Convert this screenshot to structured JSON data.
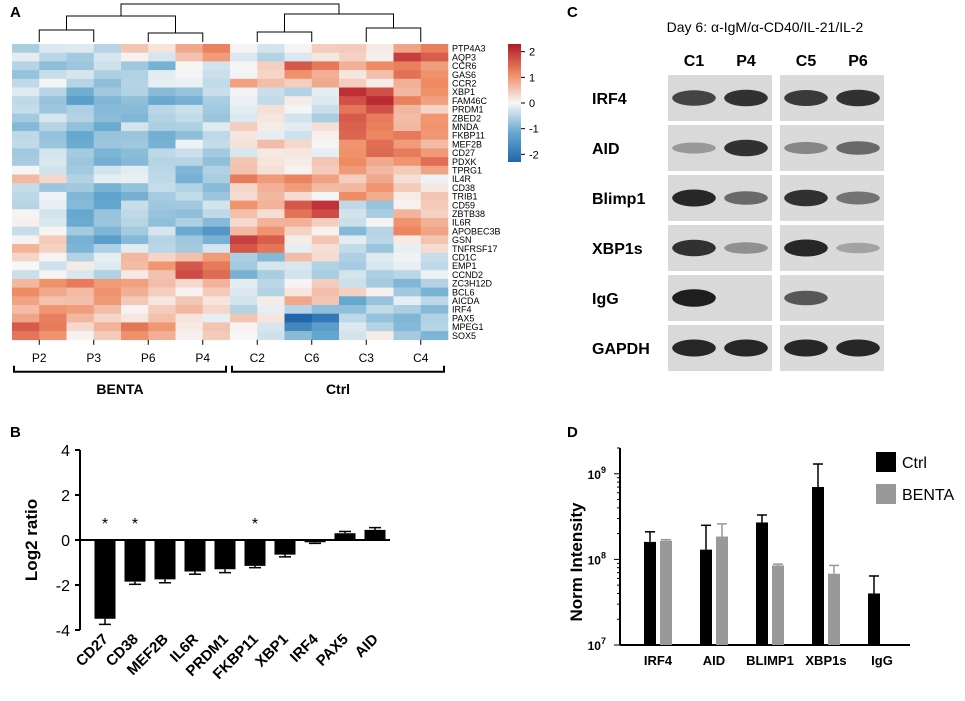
{
  "panels": {
    "a": "A",
    "b": "B",
    "c": "C",
    "d": "D"
  },
  "chart_data": [
    {
      "type": "heatmap",
      "panel": "A",
      "columns": [
        "P2",
        "P3",
        "P6",
        "P4",
        "C2",
        "C6",
        "C3",
        "C4"
      ],
      "groups": [
        {
          "name": "BENTA",
          "columns": [
            "P2",
            "P3",
            "P6",
            "P4"
          ]
        },
        {
          "name": "Ctrl",
          "columns": [
            "C2",
            "C6",
            "C3",
            "C4"
          ]
        }
      ],
      "rows": [
        "PTP4A3",
        "AQP3",
        "CCR6",
        "GAS6",
        "CCR2",
        "XBP1",
        "FAM46C",
        "PRDM1",
        "ZBED2",
        "MNDA",
        "FKBP11",
        "MEF2B",
        "CD27",
        "PDXK",
        "TPRG1",
        "IL4R",
        "CD38",
        "TRIB1",
        "CD59",
        "ZBTB38",
        "IL6R",
        "APOBEC3B",
        "GSN",
        "TNFRSF17",
        "CD1C",
        "EMP1",
        "CCND2",
        "ZC3H12D",
        "BCL6",
        "AICDA",
        "IRF4",
        "PAX5",
        "MPEG1",
        "SOX5"
      ],
      "values": [
        [
          -0.3,
          -0.2,
          0.2,
          0.9,
          -0.2,
          0.2,
          0.3,
          1.1
        ],
        [
          -0.4,
          -0.5,
          -0.1,
          0.8,
          -0.3,
          0.1,
          0.4,
          1.6
        ],
        [
          -0.6,
          -0.4,
          -0.7,
          -0.3,
          0.1,
          1.4,
          0.9,
          1.1
        ],
        [
          -0.7,
          -0.5,
          -0.4,
          -0.2,
          0.2,
          1.0,
          0.5,
          1.4
        ],
        [
          -0.2,
          -0.6,
          -0.2,
          -0.1,
          0.6,
          0.5,
          0.2,
          0.9
        ],
        [
          -0.5,
          -1.0,
          -0.8,
          -0.6,
          -0.2,
          -0.3,
          2.0,
          1.0
        ],
        [
          -0.6,
          -1.1,
          -0.9,
          -0.7,
          -0.1,
          -0.2,
          1.8,
          1.0
        ],
        [
          -0.4,
          -0.9,
          -0.8,
          -0.6,
          0.0,
          -0.2,
          1.6,
          0.6
        ],
        [
          -0.5,
          -0.7,
          -0.7,
          -0.5,
          0.1,
          -0.3,
          1.3,
          0.7
        ],
        [
          -0.6,
          -0.8,
          -0.6,
          -0.5,
          0.2,
          0.0,
          1.4,
          0.9
        ],
        [
          -0.7,
          -1.0,
          -0.9,
          -0.6,
          0.1,
          0.0,
          1.5,
          1.0
        ],
        [
          -0.5,
          -0.8,
          -0.7,
          -0.4,
          0.3,
          0.1,
          1.2,
          0.8
        ],
        [
          -0.6,
          -0.9,
          -0.7,
          -0.5,
          0.0,
          0.1,
          1.4,
          1.3
        ],
        [
          -0.4,
          -0.8,
          -0.6,
          -0.5,
          0.2,
          0.2,
          0.9,
          1.2
        ],
        [
          -0.3,
          -0.6,
          -0.4,
          -0.8,
          0.4,
          0.3,
          0.9,
          0.8
        ],
        [
          0.5,
          -0.3,
          -0.2,
          -0.7,
          1.3,
          0.9,
          0.5,
          0.0
        ],
        [
          -0.4,
          -1.0,
          -0.7,
          -0.8,
          0.5,
          0.8,
          0.9,
          0.4
        ],
        [
          -0.3,
          -1.1,
          -0.8,
          -0.5,
          0.6,
          0.3,
          0.8,
          0.2
        ],
        [
          -0.2,
          -0.9,
          -0.7,
          -0.6,
          0.8,
          1.8,
          -0.6,
          0.3
        ],
        [
          -0.2,
          -1.0,
          -0.6,
          -0.6,
          0.5,
          1.7,
          -0.3,
          0.4
        ],
        [
          0.0,
          -0.8,
          -0.5,
          -0.9,
          0.4,
          0.5,
          -0.2,
          0.9
        ],
        [
          -0.3,
          -0.9,
          -0.5,
          -1.3,
          0.9,
          0.3,
          -0.6,
          1.2
        ],
        [
          0.3,
          -1.1,
          -0.6,
          -0.7,
          1.6,
          0.2,
          -0.4,
          0.3
        ],
        [
          0.4,
          -0.9,
          -0.4,
          -0.5,
          1.5,
          0.1,
          -0.5,
          0.2
        ],
        [
          0.2,
          -0.3,
          0.6,
          0.9,
          -0.6,
          0.3,
          -0.5,
          -0.3
        ],
        [
          0.0,
          -0.2,
          0.7,
          1.4,
          -0.5,
          -0.4,
          -0.4,
          -0.2
        ],
        [
          -0.2,
          -0.4,
          0.4,
          1.7,
          -0.7,
          -0.3,
          -0.6,
          -0.4
        ],
        [
          1.0,
          1.3,
          0.6,
          0.4,
          -0.4,
          0.2,
          -0.5,
          -0.7
        ],
        [
          0.9,
          0.8,
          0.6,
          0.3,
          -0.3,
          0.5,
          0.4,
          -1.0
        ],
        [
          0.8,
          0.9,
          0.5,
          0.2,
          -0.2,
          0.6,
          -1.0,
          -0.3
        ],
        [
          0.7,
          0.7,
          0.2,
          0.5,
          -0.3,
          -0.6,
          -0.5,
          -0.6
        ],
        [
          1.1,
          0.6,
          0.5,
          0.2,
          0.2,
          -2.3,
          -0.7,
          -0.8
        ],
        [
          1.3,
          0.4,
          1.1,
          0.3,
          -0.1,
          -1.5,
          -0.3,
          -0.6
        ],
        [
          1.2,
          0.3,
          1.0,
          0.4,
          0.0,
          -1.2,
          -0.2,
          -0.9
        ]
      ],
      "colorbar": {
        "min": -2.3,
        "max": 2.3,
        "ticks": [
          2,
          1,
          0,
          -1,
          -2
        ],
        "tick_labels": [
          "2",
          "1",
          "0",
          "-1",
          "-2"
        ]
      }
    },
    {
      "type": "bar",
      "panel": "B",
      "categories": [
        "CD27",
        "CD38",
        "MEF2B",
        "IL6R",
        "PRDM1",
        "FKBP11",
        "XBP1",
        "IRF4",
        "PAX5",
        "AID"
      ],
      "values": [
        -3.5,
        -1.85,
        -1.75,
        -1.4,
        -1.3,
        -1.15,
        -0.65,
        -0.1,
        0.3,
        0.45
      ],
      "errors": [
        0.25,
        0.12,
        0.15,
        0.12,
        0.15,
        0.08,
        0.1,
        0.05,
        0.08,
        0.1
      ],
      "significant": [
        true,
        true,
        false,
        false,
        false,
        true,
        false,
        false,
        false,
        false
      ],
      "significance_mark": "*",
      "ylabel": "Log2 ratio",
      "ylim": [
        -4,
        4
      ],
      "yticks": [
        4,
        2,
        0,
        -2,
        -4
      ],
      "ytick_labels": [
        "4",
        "2",
        "0",
        "-2",
        "-4"
      ]
    },
    {
      "type": "bar",
      "panel": "D",
      "scale": "log",
      "categories": [
        "IRF4",
        "AID",
        "BLIMP1",
        "XBP1s",
        "IgG"
      ],
      "series": [
        {
          "name": "Ctrl",
          "color": "#000000",
          "values": [
            160000000.0,
            130000000.0,
            270000000.0,
            700000000.0,
            40000000.0
          ],
          "errors_upper": [
            210000000.0,
            250000000.0,
            330000000.0,
            1300000000.0,
            64000000.0
          ]
        },
        {
          "name": "BENTA",
          "color": "#999999",
          "values": [
            165000000.0,
            185000000.0,
            85000000.0,
            68000000.0,
            null
          ],
          "errors_upper": [
            170000000.0,
            260000000.0,
            88000000.0,
            85000000.0,
            null
          ]
        }
      ],
      "ylabel": "Norm Intensity",
      "ylim": [
        10000000.0,
        2000000000.0
      ],
      "yticks": [
        10000000.0,
        100000000.0,
        1000000000.0
      ],
      "ytick_labels": [
        {
          "base": "10",
          "exp": "7"
        },
        {
          "base": "10",
          "exp": "8"
        },
        {
          "base": "10",
          "exp": "9"
        }
      ],
      "legend": [
        "Ctrl",
        "BENTA"
      ],
      "legend_position": "top-right"
    }
  ],
  "blot": {
    "title": "Day 6: α-IgM/α-CD40/IL-21/IL-2",
    "lanes": [
      "C1",
      "P4",
      "C5",
      "P6"
    ],
    "rows": [
      {
        "label": "IRF4",
        "intensity": [
          0.75,
          0.85,
          0.8,
          0.85
        ]
      },
      {
        "label": "AID",
        "intensity": [
          0.3,
          0.85,
          0.4,
          0.55
        ]
      },
      {
        "label": "Blimp1",
        "intensity": [
          0.9,
          0.55,
          0.85,
          0.5
        ]
      },
      {
        "label": "XBP1s",
        "intensity": [
          0.85,
          0.35,
          0.9,
          0.25
        ]
      },
      {
        "label": "IgG",
        "intensity": [
          0.95,
          0.0,
          0.65,
          0.0
        ]
      },
      {
        "label": "GAPDH",
        "intensity": [
          0.9,
          0.9,
          0.9,
          0.9
        ]
      }
    ]
  }
}
